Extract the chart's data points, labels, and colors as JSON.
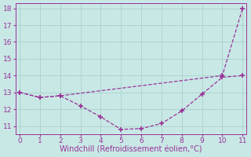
{
  "upper_x": [
    0,
    1,
    2,
    10,
    11
  ],
  "upper_y": [
    13.0,
    12.7,
    12.8,
    14.0,
    18.0
  ],
  "lower_x": [
    0,
    1,
    2,
    3,
    4,
    5,
    6,
    7,
    8,
    9,
    10,
    11
  ],
  "lower_y": [
    13.0,
    12.7,
    12.8,
    12.2,
    11.55,
    10.8,
    10.85,
    11.15,
    11.9,
    12.9,
    13.9,
    14.0
  ],
  "line_color": "#993399",
  "bg_color": "#c8e8e5",
  "grid_color": "#aed4d0",
  "xlabel": "Windchill (Refroidissement éolien,°C)",
  "xlim": [
    -0.2,
    11.2
  ],
  "ylim": [
    10.5,
    18.3
  ],
  "yticks": [
    11,
    12,
    13,
    14,
    15,
    16,
    17,
    18
  ],
  "xticks": [
    0,
    1,
    2,
    3,
    4,
    5,
    6,
    7,
    8,
    9,
    10,
    11
  ],
  "marker": "+",
  "markersize": 4,
  "linewidth": 0.9,
  "xlabel_fontsize": 7,
  "tick_fontsize": 6.5
}
